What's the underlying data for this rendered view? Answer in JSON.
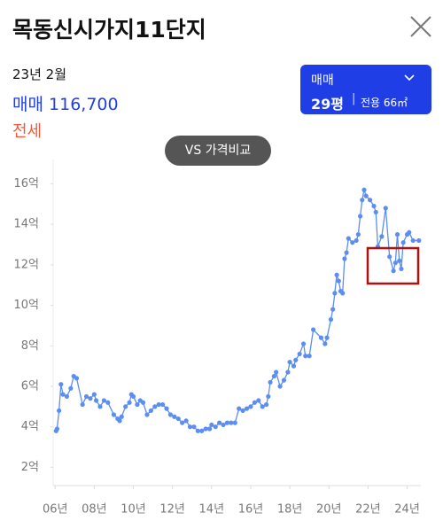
{
  "header": {
    "title": "목동신시가지11단지"
  },
  "info": {
    "date": "23년 2월",
    "sale_label": "매매",
    "sale_price": "116,700",
    "jeonse_label": "전세"
  },
  "selector": {
    "type": "매매",
    "size": "29평",
    "area": "전용 66㎡"
  },
  "compare_button": {
    "label": "VS 가격비교"
  },
  "chart_data": {
    "type": "line",
    "color": "#5b8ef0",
    "x": [
      2006.05,
      2006.1,
      2006.2,
      2006.3,
      2006.4,
      2006.6,
      2006.8,
      2006.95,
      2007.1,
      2007.4,
      2007.6,
      2007.8,
      2008.0,
      2008.1,
      2008.3,
      2008.5,
      2008.7,
      2009.0,
      2009.2,
      2009.3,
      2009.4,
      2009.6,
      2009.8,
      2009.9,
      2010.0,
      2010.2,
      2010.35,
      2010.5,
      2010.7,
      2010.9,
      2011.1,
      2011.3,
      2011.5,
      2011.7,
      2011.9,
      2012.1,
      2012.3,
      2012.5,
      2012.7,
      2012.9,
      2013.1,
      2013.3,
      2013.5,
      2013.7,
      2013.9,
      2014.0,
      2014.2,
      2014.4,
      2014.6,
      2014.8,
      2015.0,
      2015.2,
      2015.4,
      2015.6,
      2015.8,
      2016.0,
      2016.2,
      2016.4,
      2016.6,
      2016.8,
      2016.9,
      2017.0,
      2017.2,
      2017.3,
      2017.5,
      2017.7,
      2017.9,
      2018.0,
      2018.2,
      2018.3,
      2018.5,
      2018.7,
      2018.8,
      2019.0,
      2019.2,
      2019.6,
      2019.8,
      2019.9,
      2020.1,
      2020.2,
      2020.3,
      2020.4,
      2020.5,
      2020.6,
      2020.7,
      2020.8,
      2020.9,
      2021.0,
      2021.2,
      2021.4,
      2021.5,
      2021.6,
      2021.7,
      2021.8,
      2021.9,
      2022.1,
      2022.3,
      2022.4,
      2022.5,
      2022.7,
      2022.9,
      2023.1,
      2023.3,
      2023.4,
      2023.5,
      2023.6,
      2023.7,
      2023.8,
      2024.0,
      2024.1,
      2024.3,
      2024.6
    ],
    "values": [
      3.8,
      3.9,
      4.8,
      6.1,
      5.6,
      5.5,
      5.9,
      6.5,
      6.4,
      5.1,
      5.5,
      5.4,
      5.6,
      5.3,
      5.0,
      5.3,
      5.2,
      4.6,
      4.4,
      4.3,
      4.5,
      5.0,
      5.2,
      5.6,
      5.5,
      5.1,
      5.3,
      5.2,
      4.6,
      4.8,
      5.0,
      5.1,
      5.1,
      4.9,
      4.6,
      4.5,
      4.4,
      4.2,
      4.3,
      4.0,
      4.0,
      3.8,
      3.8,
      3.9,
      3.9,
      4.1,
      4.0,
      4.2,
      4.1,
      4.2,
      4.2,
      4.2,
      4.9,
      4.8,
      4.9,
      5.0,
      5.2,
      5.3,
      5.0,
      5.1,
      5.5,
      6.2,
      6.5,
      6.7,
      6.0,
      6.3,
      6.7,
      7.2,
      7.0,
      7.3,
      7.6,
      8.1,
      7.5,
      7.5,
      8.8,
      8.4,
      8.1,
      8.4,
      9.3,
      9.8,
      10.6,
      11.5,
      11.2,
      10.7,
      10.6,
      12.3,
      12.6,
      13.3,
      13.1,
      13.2,
      13.5,
      14.4,
      15.2,
      15.7,
      15.4,
      15.2,
      14.9,
      14.6,
      12.9,
      13.4,
      14.8,
      12.4,
      11.7,
      12.1,
      13.5,
      12.2,
      11.8,
      13.1,
      13.5,
      13.6,
      13.2,
      13.2
    ],
    "xlim": [
      2005.9,
      2024.7
    ],
    "ylim": [
      1.1,
      17.2
    ],
    "xticks": [
      {
        "value": 2006,
        "label": "06년"
      },
      {
        "value": 2008,
        "label": "08년"
      },
      {
        "value": 2010,
        "label": "10년"
      },
      {
        "value": 2012,
        "label": "12년"
      },
      {
        "value": 2014,
        "label": "14년"
      },
      {
        "value": 2016,
        "label": "16년"
      },
      {
        "value": 2018,
        "label": "18년"
      },
      {
        "value": 2020,
        "label": "20년"
      },
      {
        "value": 2022,
        "label": "22년"
      },
      {
        "value": 2024,
        "label": "24년"
      }
    ],
    "yticks": [
      {
        "value": 2,
        "label": "2억"
      },
      {
        "value": 4,
        "label": "4억"
      },
      {
        "value": 6,
        "label": "6억"
      },
      {
        "value": 8,
        "label": "8억"
      },
      {
        "value": 10,
        "label": "10억"
      },
      {
        "value": 12,
        "label": "12억"
      },
      {
        "value": 14,
        "label": "14억"
      },
      {
        "value": 16,
        "label": "16억"
      }
    ]
  }
}
